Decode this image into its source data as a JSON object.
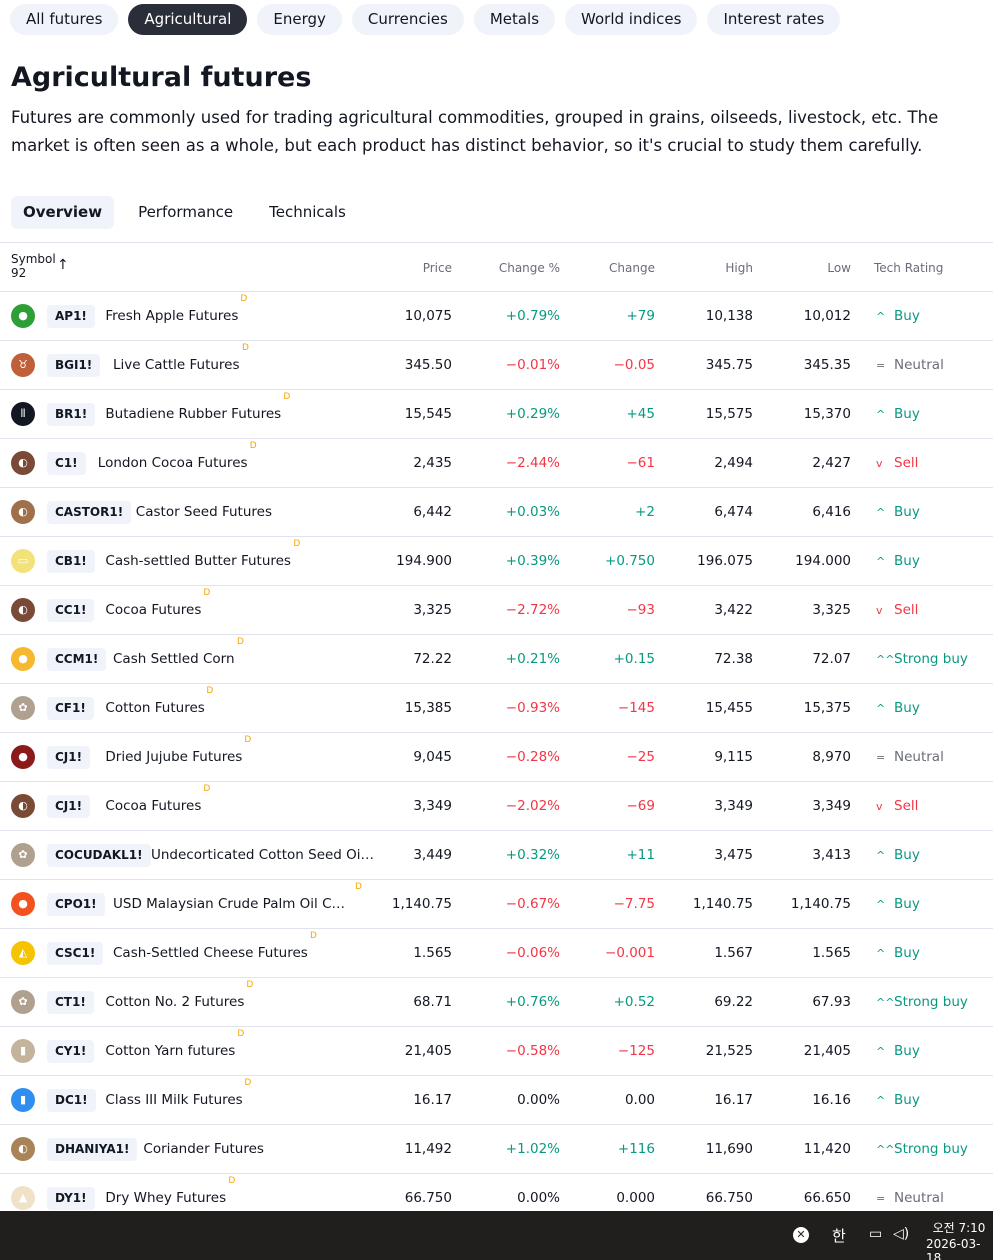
{
  "category_tabs": [
    "All futures",
    "Agricultural",
    "Energy",
    "Currencies",
    "Metals",
    "World indices",
    "Interest rates"
  ],
  "title": "Agricultural futures",
  "description": "Futures are commonly used for trading agricultural commodities, grouped in grains, oilseeds, livestock, etc. The market is often seen as a whole, but each product has distinct behavior, so it's crucial to study them carefully.",
  "sub_tabs": [
    "Overview",
    "Performance",
    "Technicals"
  ],
  "table": {
    "headers": {
      "symbol": "Symbol",
      "count": "92",
      "price": "Price",
      "change_pct": "Change %",
      "change": "Change",
      "high": "High",
      "low": "Low",
      "rating": "Tech Rating"
    },
    "rows": [
      {
        "icon": "apple-icon",
        "color": "#2e9e36",
        "glyph": "●",
        "ticker": "AP1!",
        "name": "Fresh Apple Futures",
        "d": "D",
        "price": "10,075",
        "chg_pct": "+0.79%",
        "chg": "+79",
        "high": "10,138",
        "low": "10,012",
        "dir": "pos",
        "rating": "Buy",
        "rating_glyph": "^",
        "rating_class": "r-buy"
      },
      {
        "icon": "cattle-icon",
        "color": "#c0603a",
        "glyph": "♉",
        "ticker": "BGI1!",
        "name": "Live Cattle Futures",
        "d": "D",
        "price": "345.50",
        "chg_pct": "−0.01%",
        "chg": "−0.05",
        "high": "345.75",
        "low": "345.35",
        "dir": "neg",
        "rating": "Neutral",
        "rating_glyph": "=",
        "rating_class": "r-neutral"
      },
      {
        "icon": "rubber-icon",
        "color": "#131722",
        "glyph": "⦀",
        "ticker": "BR1!",
        "name": "Butadiene Rubber Futures",
        "d": "D",
        "price": "15,545",
        "chg_pct": "+0.29%",
        "chg": "+45",
        "high": "15,575",
        "low": "15,370",
        "dir": "pos",
        "rating": "Buy",
        "rating_glyph": "^",
        "rating_class": "r-buy"
      },
      {
        "icon": "cocoa-icon",
        "color": "#7a4a36",
        "glyph": "◐",
        "ticker": "C1!",
        "name": "London Cocoa Futures",
        "d": "D",
        "price": "2,435",
        "chg_pct": "−2.44%",
        "chg": "−61",
        "high": "2,494",
        "low": "2,427",
        "dir": "neg",
        "rating": "Sell",
        "rating_glyph": "v",
        "rating_class": "r-sell"
      },
      {
        "icon": "castor-seed-icon",
        "color": "#a0704c",
        "glyph": "◐",
        "ticker": "CASTOR1!",
        "name": "Castor Seed Futures",
        "d": "",
        "price": "6,442",
        "chg_pct": "+0.03%",
        "chg": "+2",
        "high": "6,474",
        "low": "6,416",
        "dir": "pos",
        "rating": "Buy",
        "rating_glyph": "^",
        "rating_class": "r-buy"
      },
      {
        "icon": "butter-icon",
        "color": "#f3e27a",
        "glyph": "▭",
        "ticker": "CB1!",
        "name": "Cash-settled Butter Futures",
        "d": "D",
        "price": "194.900",
        "chg_pct": "+0.39%",
        "chg": "+0.750",
        "high": "196.075",
        "low": "194.000",
        "dir": "pos",
        "rating": "Buy",
        "rating_glyph": "^",
        "rating_class": "r-buy"
      },
      {
        "icon": "cocoa-icon",
        "color": "#7a4a36",
        "glyph": "◐",
        "ticker": "CC1!",
        "name": "Cocoa Futures",
        "d": "D",
        "price": "3,325",
        "chg_pct": "−2.72%",
        "chg": "−93",
        "high": "3,422",
        "low": "3,325",
        "dir": "neg",
        "rating": "Sell",
        "rating_glyph": "v",
        "rating_class": "r-sell"
      },
      {
        "icon": "corn-icon",
        "color": "#f5b82e",
        "glyph": "●",
        "ticker": "CCM1!",
        "name": "Cash Settled Corn",
        "d": "D",
        "price": "72.22",
        "chg_pct": "+0.21%",
        "chg": "+0.15",
        "high": "72.38",
        "low": "72.07",
        "dir": "pos",
        "rating": "Strong buy",
        "rating_glyph": "^^",
        "rating_class": "r-buy"
      },
      {
        "icon": "cotton-icon",
        "color": "#b0a090",
        "glyph": "✿",
        "ticker": "CF1!",
        "name": "Cotton Futures",
        "d": "D",
        "price": "15,385",
        "chg_pct": "−0.93%",
        "chg": "−145",
        "high": "15,455",
        "low": "15,375",
        "dir": "neg",
        "rating": "Buy",
        "rating_glyph": "^",
        "rating_class": "r-buy"
      },
      {
        "icon": "jujube-icon",
        "color": "#8b1a1a",
        "glyph": "●",
        "ticker": "CJ1!",
        "name": "Dried Jujube Futures",
        "d": "D",
        "price": "9,045",
        "chg_pct": "−0.28%",
        "chg": "−25",
        "high": "9,115",
        "low": "8,970",
        "dir": "neg",
        "rating": "Neutral",
        "rating_glyph": "=",
        "rating_class": "r-neutral"
      },
      {
        "icon": "cocoa-icon",
        "color": "#7a4a36",
        "glyph": "◐",
        "ticker": "CJ1!",
        "name": "Cocoa Futures",
        "d": "D",
        "price": "3,349",
        "chg_pct": "−2.02%",
        "chg": "−69",
        "high": "3,349",
        "low": "3,349",
        "dir": "neg",
        "rating": "Sell",
        "rating_glyph": "v",
        "rating_class": "r-sell"
      },
      {
        "icon": "cotton-icon",
        "color": "#b0a090",
        "glyph": "✿",
        "ticker": "COCUDAKL1!",
        "name": "Undecorticated Cotton Seed Oi…",
        "d": "",
        "price": "3,449",
        "chg_pct": "+0.32%",
        "chg": "+11",
        "high": "3,475",
        "low": "3,413",
        "dir": "pos",
        "rating": "Buy",
        "rating_glyph": "^",
        "rating_class": "r-buy"
      },
      {
        "icon": "palm-oil-icon",
        "color": "#f2521e",
        "glyph": "●",
        "ticker": "CPO1!",
        "name": "USD Malaysian Crude Palm Oil Cale…",
        "d": "D",
        "price": "1,140.75",
        "chg_pct": "−0.67%",
        "chg": "−7.75",
        "high": "1,140.75",
        "low": "1,140.75",
        "dir": "neg",
        "rating": "Buy",
        "rating_glyph": "^",
        "rating_class": "r-buy"
      },
      {
        "icon": "cheese-icon",
        "color": "#f5c400",
        "glyph": "◭",
        "ticker": "CSC1!",
        "name": "Cash-Settled Cheese Futures",
        "d": "D",
        "price": "1.565",
        "chg_pct": "−0.06%",
        "chg": "−0.001",
        "high": "1.567",
        "low": "1.565",
        "dir": "neg",
        "rating": "Buy",
        "rating_glyph": "^",
        "rating_class": "r-buy"
      },
      {
        "icon": "cotton-icon",
        "color": "#b0a090",
        "glyph": "✿",
        "ticker": "CT1!",
        "name": "Cotton No. 2 Futures",
        "d": "D",
        "price": "68.71",
        "chg_pct": "+0.76%",
        "chg": "+0.52",
        "high": "69.22",
        "low": "67.93",
        "dir": "pos",
        "rating": "Strong buy",
        "rating_glyph": "^^",
        "rating_class": "r-buy"
      },
      {
        "icon": "yarn-icon",
        "color": "#c4b49c",
        "glyph": "▮",
        "ticker": "CY1!",
        "name": "Cotton Yarn futures",
        "d": "D",
        "price": "21,405",
        "chg_pct": "−0.58%",
        "chg": "−125",
        "high": "21,525",
        "low": "21,405",
        "dir": "neg",
        "rating": "Buy",
        "rating_glyph": "^",
        "rating_class": "r-buy"
      },
      {
        "icon": "milk-icon",
        "color": "#2f8ef0",
        "glyph": "▮",
        "ticker": "DC1!",
        "name": "Class III Milk Futures",
        "d": "D",
        "price": "16.17",
        "chg_pct": "0.00%",
        "chg": "0.00",
        "high": "16.17",
        "low": "16.16",
        "dir": "neu",
        "rating": "Buy",
        "rating_glyph": "^",
        "rating_class": "r-buy"
      },
      {
        "icon": "coriander-icon",
        "color": "#a88458",
        "glyph": "◐",
        "ticker": "DHANIYA1!",
        "name": "Coriander Futures",
        "d": "",
        "price": "11,492",
        "chg_pct": "+1.02%",
        "chg": "+116",
        "high": "11,690",
        "low": "11,420",
        "dir": "pos",
        "rating": "Strong buy",
        "rating_glyph": "^^",
        "rating_class": "r-buy"
      },
      {
        "icon": "whey-icon",
        "color": "#efe2c8",
        "glyph": "▲",
        "ticker": "DY1!",
        "name": "Dry Whey Futures",
        "d": "D",
        "price": "66.750",
        "chg_pct": "0.00%",
        "chg": "0.000",
        "high": "66.750",
        "low": "66.650",
        "dir": "neu",
        "rating": "Neutral",
        "rating_glyph": "=",
        "rating_class": "r-neutral"
      }
    ]
  },
  "taskbar": {
    "ime": "한",
    "time": "오전 7:10",
    "date": "2026-03-18"
  }
}
